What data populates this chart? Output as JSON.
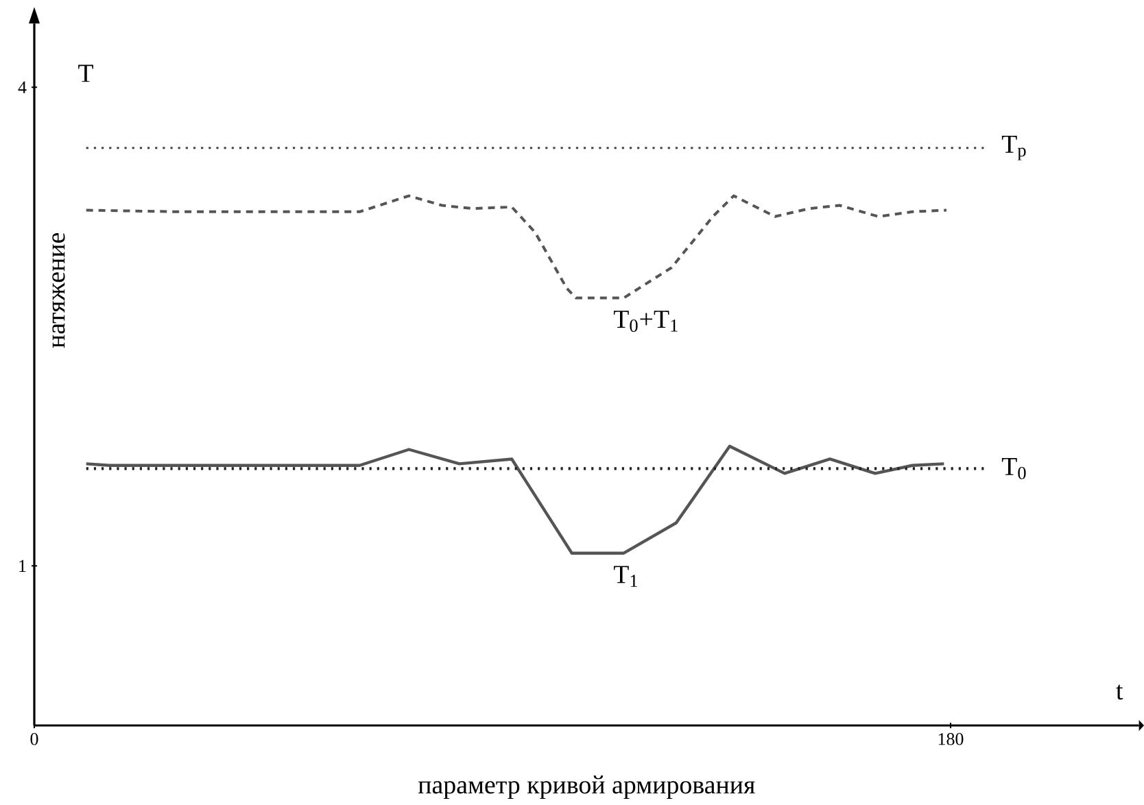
{
  "chart_data": {
    "type": "line",
    "xlabel": "параметр кривой армирования",
    "ylabel": "натяжение",
    "annotations": [
      "T",
      "t"
    ],
    "xlim": [
      0,
      217
    ],
    "ylim": [
      0,
      4.4
    ],
    "xticks": [
      0,
      180
    ],
    "yticks": [
      1,
      4
    ],
    "legend": false,
    "grid": false,
    "marker": "none",
    "ref_lines": [
      {
        "axis": "y",
        "value": 3.62,
        "label": "T$_{р}$",
        "color": "#444444",
        "line_style": "dotted"
      },
      {
        "axis": "y",
        "value": 1.61,
        "label": "T$_{0}$",
        "color": "#222222",
        "line_style": "dotted"
      }
    ],
    "series": [
      {
        "name": "T$_{0}$+T$_{1}$",
        "color": "#555555",
        "line_style": "dashed",
        "x": [
          10.2,
          28.3,
          63.9,
          73.6,
          80.1,
          86.2,
          93.8,
          98.4,
          104.6,
          106.4,
          115.8,
          125.2,
          133.3,
          137.4,
          145.5,
          152.2,
          158.2,
          165.8,
          172.5,
          179.2
        ],
        "values": [
          3.23,
          3.22,
          3.22,
          3.32,
          3.26,
          3.24,
          3.25,
          3.09,
          2.74,
          2.68,
          2.68,
          2.87,
          3.19,
          3.32,
          3.19,
          3.24,
          3.26,
          3.19,
          3.22,
          3.23
        ]
      },
      {
        "name": "T$_{1}$",
        "color": "#555555",
        "line_style": "solid",
        "x": [
          10.2,
          14.8,
          63.9,
          73.6,
          83.5,
          93.8,
          105.6,
          115.8,
          126.1,
          136.6,
          147.4,
          156.3,
          165.2,
          172.5,
          178.7
        ],
        "values": [
          1.64,
          1.63,
          1.63,
          1.73,
          1.64,
          1.67,
          1.08,
          1.08,
          1.27,
          1.75,
          1.58,
          1.67,
          1.58,
          1.63,
          1.64
        ]
      }
    ]
  }
}
